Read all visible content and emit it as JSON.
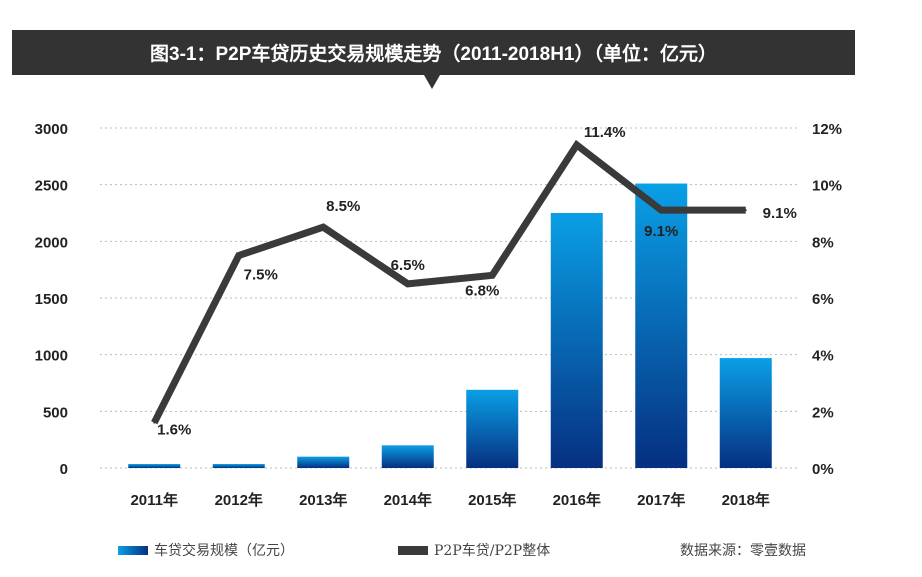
{
  "chart_data": {
    "type": "bar+line",
    "title": "图3-1：P2P车贷历史交易规模走势（2011-2018H1）（单位：亿元）",
    "categories": [
      "2011年",
      "2012年",
      "2013年",
      "2014年",
      "2015年",
      "2016年",
      "2017年",
      "2018年"
    ],
    "series": [
      {
        "name": "车贷交易规模（亿元）",
        "type": "bar",
        "axis": "left",
        "values": [
          35,
          35,
          100,
          200,
          690,
          2250,
          2510,
          970
        ],
        "color": "#0a5fb4"
      },
      {
        "name": "P2P车贷/P2P整体",
        "type": "line",
        "axis": "right",
        "values": [
          1.6,
          7.5,
          8.5,
          6.5,
          6.8,
          11.4,
          9.1,
          9.1
        ],
        "labels": [
          "1.6%",
          "7.5%",
          "8.5%",
          "6.5%",
          "6.8%",
          "11.4%",
          "9.1%",
          "9.1%"
        ],
        "color": "#3a3a3a"
      }
    ],
    "ylim_left": [
      0,
      3000
    ],
    "yticks_left": [
      "0",
      "500",
      "1000",
      "1500",
      "2000",
      "2500",
      "3000"
    ],
    "ylim_right": [
      0,
      12
    ],
    "yticks_right": [
      "0%",
      "2%",
      "4%",
      "6%",
      "8%",
      "10%",
      "12%"
    ],
    "grid": true,
    "legend": "bottom-left"
  },
  "source": "数据来源：零壹数据"
}
